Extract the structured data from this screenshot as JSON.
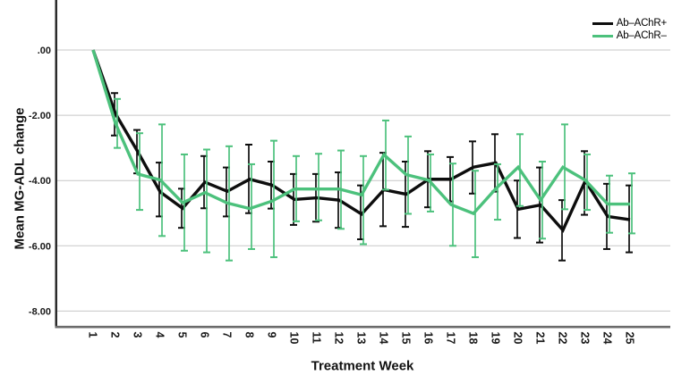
{
  "chart_data": {
    "type": "line",
    "title": "",
    "xlabel": "Treatment Week",
    "ylabel": "Mean MG-ADL change",
    "grid": true,
    "legend_position": "top-right",
    "x": [
      1,
      2,
      3,
      4,
      5,
      6,
      7,
      8,
      9,
      10,
      11,
      12,
      13,
      14,
      15,
      16,
      17,
      18,
      19,
      20,
      21,
      22,
      23,
      24,
      25
    ],
    "ylim": [
      -8.6,
      1.5
    ],
    "yticks": [
      0,
      -2,
      -4,
      -6,
      -8
    ],
    "ytick_labels": [
      ".00",
      "-2.00",
      "-4.00",
      "-6.00",
      "-8.00"
    ],
    "error_bars": true,
    "series": [
      {
        "name": "Ab–AChR+",
        "color": "#0d0d0d",
        "values": [
          0,
          -1.95,
          -3.12,
          -4.35,
          -4.85,
          -4.05,
          -4.33,
          -3.96,
          -4.14,
          -4.58,
          -4.53,
          -4.6,
          -5.03,
          -4.28,
          -4.42,
          -3.96,
          -3.96,
          -3.59,
          -3.46,
          -4.88,
          -4.75,
          -5.52,
          -4.01,
          -5.1,
          -5.2
        ],
        "err_upper": [
          null,
          -1.32,
          -2.45,
          -3.45,
          -4.25,
          -3.25,
          -3.6,
          -2.9,
          -3.42,
          -3.8,
          -3.8,
          -3.75,
          -4.15,
          -3.15,
          -3.42,
          -3.1,
          -3.28,
          -2.8,
          -2.58,
          -4.0,
          -3.6,
          -4.6,
          -3.1,
          -4.1,
          -4.15
        ],
        "err_lower": [
          null,
          -2.62,
          -3.78,
          -5.1,
          -5.45,
          -4.85,
          -5.1,
          -5.0,
          -4.86,
          -5.36,
          -5.26,
          -5.45,
          -5.8,
          -5.4,
          -5.42,
          -4.82,
          -4.64,
          -4.4,
          -4.34,
          -5.76,
          -5.9,
          -6.45,
          -5.05,
          -6.1,
          -6.2
        ]
      },
      {
        "name": "Ab–AChR–",
        "color": "#4cc17c",
        "values": [
          0,
          -2.25,
          -3.8,
          -3.98,
          -4.68,
          -4.37,
          -4.69,
          -4.86,
          -4.63,
          -4.26,
          -4.26,
          -4.26,
          -4.44,
          -3.21,
          -3.82,
          -3.99,
          -4.74,
          -5.01,
          -4.25,
          -3.59,
          -4.6,
          -3.59,
          -3.99,
          -4.72,
          -4.72
        ],
        "err_upper": [
          null,
          -1.5,
          -2.55,
          -2.28,
          -3.2,
          -3.05,
          -2.95,
          -3.5,
          -2.78,
          -3.25,
          -3.18,
          -3.08,
          -3.25,
          -2.16,
          -2.65,
          -3.2,
          -3.48,
          -3.7,
          -3.5,
          -2.58,
          -3.42,
          -2.28,
          -3.2,
          -3.85,
          -3.78
        ],
        "err_lower": [
          null,
          -3.0,
          -4.9,
          -5.7,
          -6.15,
          -6.2,
          -6.45,
          -6.1,
          -6.35,
          -5.25,
          -5.22,
          -5.48,
          -5.95,
          -4.28,
          -5.02,
          -4.95,
          -6.0,
          -6.35,
          -5.2,
          -4.78,
          -5.78,
          -4.88,
          -4.9,
          -5.6,
          -5.62
        ]
      }
    ],
    "style": {
      "gridline_color": "#c7c7c7",
      "y_axis_color": "#2b2b2b",
      "x_axis_color": "#6b6b6b",
      "tick_label_color": "#1a1a1a"
    }
  }
}
